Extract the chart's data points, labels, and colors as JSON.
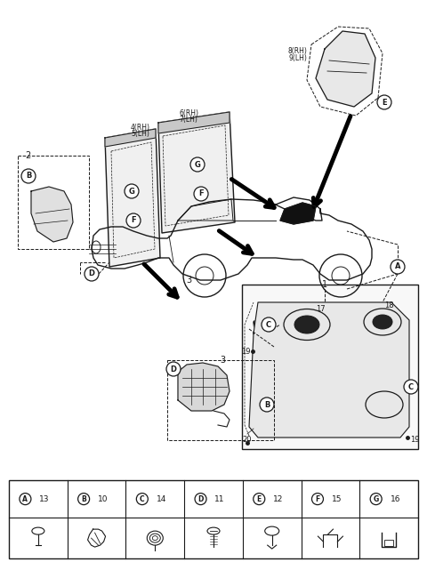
{
  "bg_color": "#ffffff",
  "line_color": "#1a1a1a",
  "legend_items": [
    {
      "label": "A",
      "num": "13"
    },
    {
      "label": "B",
      "num": "10"
    },
    {
      "label": "C",
      "num": "14"
    },
    {
      "label": "D",
      "num": "11"
    },
    {
      "label": "E",
      "num": "12"
    },
    {
      "label": "F",
      "num": "15"
    },
    {
      "label": "G",
      "num": "16"
    }
  ]
}
